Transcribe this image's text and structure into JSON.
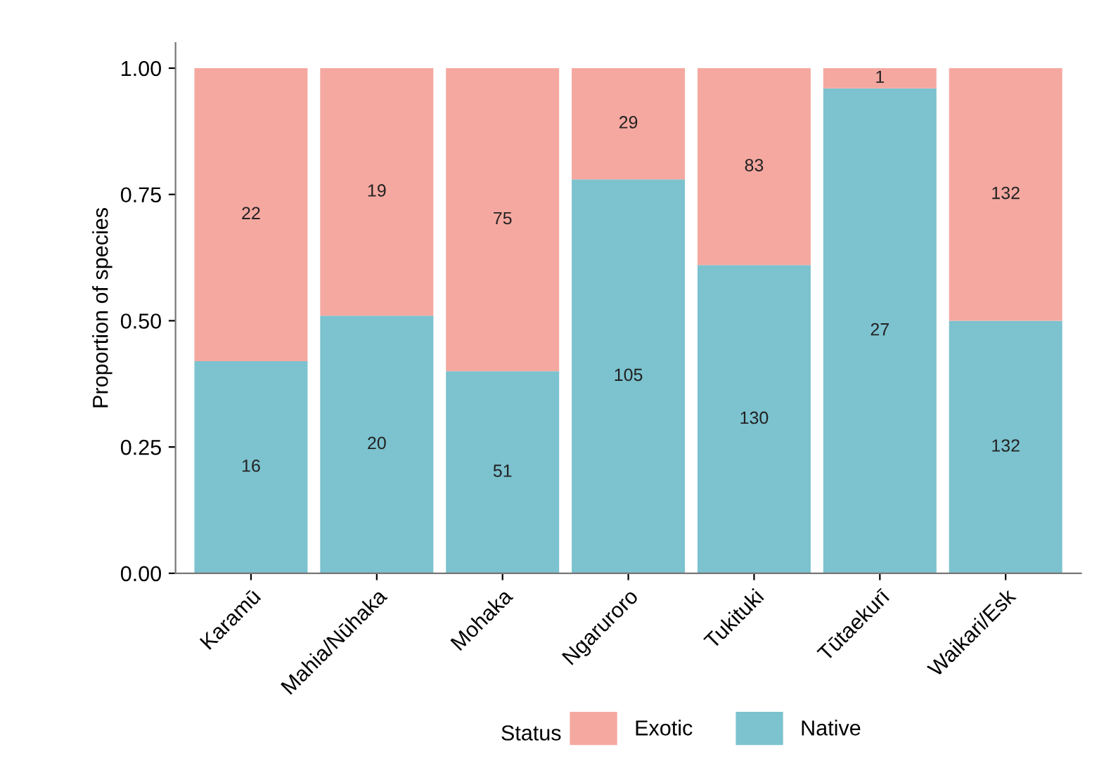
{
  "chart_data": {
    "type": "bar",
    "stacked": true,
    "ylabel": "Proportion of species",
    "legend_title": "Status",
    "legend": "bottom",
    "categories": [
      "Karamū",
      "Mahia/Nūhaka",
      "Mohaka",
      "Ngaruroro",
      "Tukituki",
      "Tūtaekurī",
      "Waikari/Esk"
    ],
    "series": [
      {
        "name": "Native",
        "color": "#7cc2cf",
        "values": [
          0.42,
          0.51,
          0.4,
          0.78,
          0.61,
          0.96,
          0.5
        ]
      },
      {
        "name": "Exotic",
        "color": "#f5a8a0",
        "values": [
          0.58,
          0.49,
          0.6,
          0.22,
          0.39,
          0.04,
          0.5
        ]
      }
    ],
    "annotations": [
      "16",
      "20",
      "51",
      "105",
      "130",
      "27",
      "132",
      "22",
      "19",
      "75",
      "29",
      "83",
      "1",
      "132"
    ],
    "ylim": [
      0,
      1.05
    ],
    "yticks": [
      {
        "value": 0,
        "label": "0.00"
      },
      {
        "value": 0.25,
        "label": "0.25"
      },
      {
        "value": 0.5,
        "label": "0.50"
      },
      {
        "value": 0.75,
        "label": "0.75"
      },
      {
        "value": 1,
        "label": "1.00"
      }
    ],
    "grid": false
  }
}
